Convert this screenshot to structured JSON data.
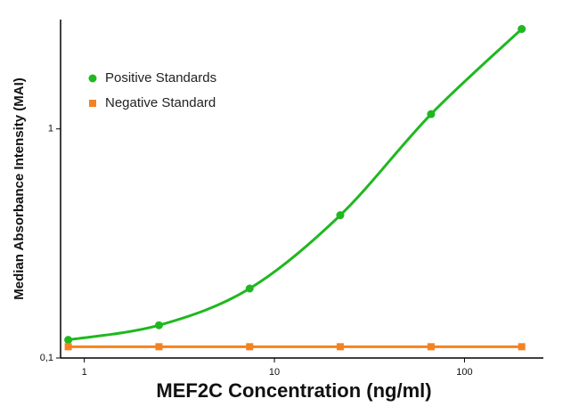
{
  "chart_data": {
    "type": "line",
    "x_label": "MEF2C Concentration (ng/ml)",
    "y_label": "Median Absorbance Intensity (MAI)",
    "x": [
      0.823,
      2.47,
      7.41,
      22.2,
      66.7,
      200
    ],
    "series": [
      {
        "name": "Positive Standards",
        "color": "#1fb81f",
        "marker": "circle",
        "smooth": true,
        "values": [
          0.12,
          0.139,
          0.201,
          0.42,
          1.16,
          2.73
        ]
      },
      {
        "name": "Negative Standard",
        "color": "#f58220",
        "marker": "square",
        "smooth": false,
        "values": [
          0.112,
          0.112,
          0.112,
          0.112,
          0.112,
          0.112
        ]
      }
    ],
    "xscale": "log",
    "yscale": "log",
    "xlim": [
      0.75,
      260
    ],
    "ylim": [
      0.1,
      3
    ],
    "xticks": [
      1,
      10,
      100
    ],
    "yticks": [
      {
        "value": 0.1,
        "label": "0,1"
      },
      1
    ],
    "legend": "upper left"
  }
}
